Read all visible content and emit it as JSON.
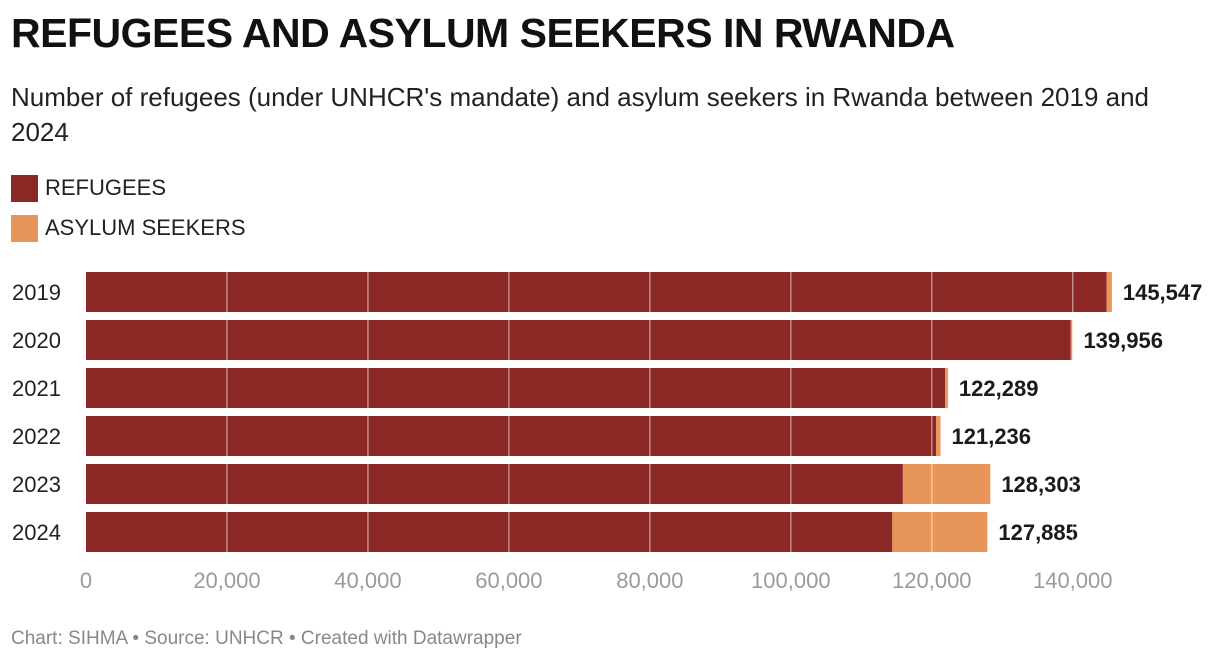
{
  "title": "REFUGEES AND ASYLUM SEEKERS IN RWANDA",
  "subtitle": "Number of refugees (under UNHCR's mandate) and asylum seekers in Rwanda between 2019 and 2024",
  "legend": {
    "items": [
      {
        "label": "REFUGEES",
        "color": "#8b2826"
      },
      {
        "label": "ASYLUM SEEKERS",
        "color": "#e8955c"
      }
    ]
  },
  "footer": "Chart: SIHMA • Source: UNHCR • Created with Datawrapper",
  "chart_data": {
    "type": "bar",
    "orientation": "horizontal",
    "stacked": true,
    "title": "REFUGEES AND ASYLUM SEEKERS IN RWANDA",
    "categories": [
      "2019",
      "2020",
      "2021",
      "2022",
      "2023",
      "2024"
    ],
    "series": [
      {
        "name": "REFUGEES",
        "color": "#8b2826",
        "values": [
          144800,
          139700,
          121900,
          120600,
          115900,
          114400
        ]
      },
      {
        "name": "ASYLUM SEEKERS",
        "color": "#e8955c",
        "values": [
          747,
          256,
          389,
          636,
          12403,
          13485
        ]
      }
    ],
    "totals": [
      145547,
      139956,
      122289,
      121236,
      128303,
      127885
    ],
    "total_labels": [
      "145,547",
      "139,956",
      "122,289",
      "121,236",
      "128,303",
      "127,885"
    ],
    "xlim": [
      0,
      145000
    ],
    "x_ticks": [
      0,
      20000,
      40000,
      60000,
      80000,
      100000,
      120000,
      140000
    ],
    "x_tick_labels": [
      "0",
      "20,000",
      "40,000",
      "60,000",
      "80,000",
      "100,000",
      "120,000",
      "140,000"
    ],
    "grid": true,
    "legend_position": "top-left"
  }
}
